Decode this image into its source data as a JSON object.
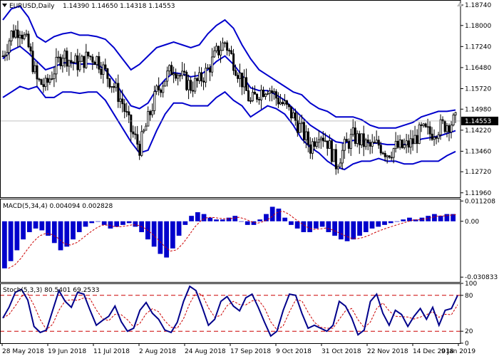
{
  "colors": {
    "background": "#ffffff",
    "candle": "#000000",
    "bollinger": "#0000cc",
    "macd_hist": "#0000cc",
    "macd_signal": "#cc0000",
    "stoch_main": "#00008b",
    "stoch_signal": "#cc0000",
    "level_line": "#cc0000",
    "current_price_bg": "#000000",
    "current_price_fg": "#ffffff",
    "panel_border": "#000000",
    "separator": "#808080"
  },
  "icons": {
    "header_arrow": "triangle-down-icon",
    "corner": "triangle-up-icon"
  },
  "header": {
    "symbol": "EURUSD,Daily",
    "ohlc": "1.14390 1.14650 1.14318 1.14553"
  },
  "price_axis": {
    "ticks": [
      "1.18740",
      "1.18000",
      "1.17240",
      "1.16480",
      "1.15720",
      "1.14980",
      "1.14220",
      "1.13460",
      "1.12720",
      "1.11960"
    ],
    "current_price": "1.14553"
  },
  "macd": {
    "label": "MACD(5,34,4) 0.004094 0.002828",
    "ticks": [
      "0.011208",
      "0.00",
      "-0.030833"
    ]
  },
  "stoch": {
    "label": "Stoch(5,3,3) 80.5401 69.2533",
    "ticks": [
      "100",
      "80",
      "20",
      "0"
    ]
  },
  "date_axis": {
    "labels": [
      "28 May 2018",
      "19 Jun 2018",
      "11 Jul 2018",
      "2 Aug 2018",
      "24 Aug 2018",
      "17 Sep 2018",
      "9 Oct 2018",
      "31 Oct 2018",
      "22 Nov 2018",
      "14 Dec 2018",
      "9 Jan 2019"
    ]
  },
  "chart_data": [
    {
      "type": "candlestick",
      "ylim": [
        1.118,
        1.1892
      ],
      "x_start": "2018-05-28",
      "x_end": "2019-01-09",
      "anchors": [
        [
          0,
          1.169
        ],
        [
          4,
          1.177
        ],
        [
          8,
          1.179
        ],
        [
          12,
          1.172
        ],
        [
          16,
          1.16
        ],
        [
          20,
          1.158
        ],
        [
          24,
          1.164
        ],
        [
          28,
          1.17
        ],
        [
          32,
          1.167
        ],
        [
          36,
          1.166
        ],
        [
          40,
          1.169
        ],
        [
          44,
          1.168
        ],
        [
          48,
          1.163
        ],
        [
          52,
          1.158
        ],
        [
          56,
          1.152
        ],
        [
          60,
          1.142
        ],
        [
          64,
          1.136
        ],
        [
          68,
          1.146
        ],
        [
          72,
          1.156
        ],
        [
          76,
          1.161
        ],
        [
          80,
          1.165
        ],
        [
          84,
          1.161
        ],
        [
          88,
          1.158
        ],
        [
          92,
          1.16
        ],
        [
          96,
          1.164
        ],
        [
          100,
          1.17
        ],
        [
          104,
          1.174
        ],
        [
          108,
          1.167
        ],
        [
          112,
          1.16
        ],
        [
          116,
          1.152
        ],
        [
          120,
          1.156
        ],
        [
          124,
          1.158
        ],
        [
          128,
          1.154
        ],
        [
          132,
          1.151
        ],
        [
          136,
          1.147
        ],
        [
          140,
          1.142
        ],
        [
          144,
          1.136
        ],
        [
          148,
          1.142
        ],
        [
          152,
          1.138
        ],
        [
          156,
          1.13
        ],
        [
          160,
          1.136
        ],
        [
          164,
          1.14
        ],
        [
          168,
          1.138
        ],
        [
          172,
          1.136
        ],
        [
          176,
          1.137
        ],
        [
          180,
          1.134
        ],
        [
          184,
          1.136
        ],
        [
          188,
          1.136
        ],
        [
          192,
          1.138
        ],
        [
          196,
          1.142
        ],
        [
          200,
          1.141
        ],
        [
          204,
          1.143
        ],
        [
          208,
          1.1445
        ],
        [
          212,
          1.1455
        ]
      ],
      "bollinger": {
        "middle": [
          1.168,
          1.171,
          1.1725,
          1.17,
          1.167,
          1.164,
          1.165,
          1.1665,
          1.1665,
          1.166,
          1.1662,
          1.166,
          1.164,
          1.16,
          1.1555,
          1.151,
          1.15,
          1.152,
          1.157,
          1.1605,
          1.163,
          1.1625,
          1.1615,
          1.162,
          1.164,
          1.167,
          1.169,
          1.166,
          1.162,
          1.1575,
          1.1565,
          1.1565,
          1.155,
          1.153,
          1.15,
          1.147,
          1.144,
          1.142,
          1.14,
          1.138,
          1.1375,
          1.1385,
          1.1385,
          1.1375,
          1.1375,
          1.137,
          1.137,
          1.137,
          1.1375,
          1.139,
          1.1395,
          1.14,
          1.141,
          1.142
        ],
        "upper": [
          1.182,
          1.186,
          1.187,
          1.183,
          1.176,
          1.174,
          1.176,
          1.177,
          1.1775,
          1.1765,
          1.1765,
          1.176,
          1.175,
          1.172,
          1.168,
          1.164,
          1.166,
          1.169,
          1.172,
          1.173,
          1.174,
          1.173,
          1.172,
          1.173,
          1.177,
          1.18,
          1.182,
          1.179,
          1.173,
          1.168,
          1.164,
          1.162,
          1.16,
          1.158,
          1.156,
          1.155,
          1.152,
          1.15,
          1.149,
          1.147,
          1.147,
          1.147,
          1.146,
          1.144,
          1.143,
          1.143,
          1.143,
          1.144,
          1.145,
          1.147,
          1.148,
          1.149,
          1.149,
          1.1495
        ],
        "lower": [
          1.154,
          1.156,
          1.158,
          1.157,
          1.158,
          1.154,
          1.154,
          1.156,
          1.156,
          1.1555,
          1.156,
          1.156,
          1.153,
          1.148,
          1.143,
          1.138,
          1.134,
          1.135,
          1.142,
          1.148,
          1.152,
          1.152,
          1.151,
          1.151,
          1.151,
          1.154,
          1.156,
          1.153,
          1.151,
          1.147,
          1.149,
          1.151,
          1.15,
          1.148,
          1.144,
          1.139,
          1.136,
          1.134,
          1.131,
          1.129,
          1.128,
          1.13,
          1.131,
          1.131,
          1.132,
          1.131,
          1.131,
          1.13,
          1.13,
          1.131,
          1.131,
          1.131,
          1.133,
          1.1345
        ]
      }
    },
    {
      "type": "bar",
      "name_label": "MACD(5,34,4)",
      "ylim": [
        -0.0335,
        0.0125
      ],
      "histogram": [
        -0.026,
        -0.022,
        -0.016,
        -0.01,
        -0.006,
        -0.004,
        -0.005,
        -0.008,
        -0.012,
        -0.016,
        -0.014,
        -0.01,
        -0.006,
        -0.003,
        -0.001,
        0.0,
        -0.002,
        -0.004,
        -0.003,
        -0.002,
        -0.001,
        -0.003,
        -0.006,
        -0.01,
        -0.014,
        -0.018,
        -0.02,
        -0.015,
        -0.008,
        -0.002,
        0.003,
        0.005,
        0.004,
        0.002,
        0.001,
        0.001,
        0.002,
        0.003,
        0.0,
        -0.002,
        -0.002,
        0.001,
        0.004,
        0.008,
        0.007,
        0.002,
        -0.002,
        -0.004,
        -0.006,
        -0.006,
        -0.004,
        -0.003,
        -0.006,
        -0.008,
        -0.01,
        -0.011,
        -0.01,
        -0.008,
        -0.006,
        -0.004,
        -0.003,
        -0.002,
        -0.001,
        0.0,
        0.001,
        0.002,
        0.001,
        0.002,
        0.003,
        0.004,
        0.003,
        0.004,
        0.004
      ],
      "signal_offset": 2
    },
    {
      "type": "line",
      "name_label": "Stoch(5,3,3)",
      "ylim": [
        0,
        100
      ],
      "levels": [
        80,
        20
      ],
      "main": [
        42,
        60,
        85,
        90,
        72,
        28,
        18,
        22,
        55,
        88,
        70,
        60,
        85,
        82,
        55,
        30,
        38,
        45,
        62,
        36,
        20,
        25,
        55,
        68,
        50,
        40,
        22,
        18,
        35,
        70,
        95,
        88,
        60,
        30,
        40,
        70,
        78,
        62,
        54,
        76,
        82,
        60,
        35,
        12,
        20,
        55,
        82,
        80,
        50,
        25,
        30,
        25,
        20,
        30,
        70,
        62,
        42,
        14,
        22,
        70,
        82,
        50,
        30,
        55,
        48,
        28,
        45,
        58,
        40,
        60,
        30,
        55,
        58,
        80
      ],
      "signal_lag": 1
    }
  ]
}
